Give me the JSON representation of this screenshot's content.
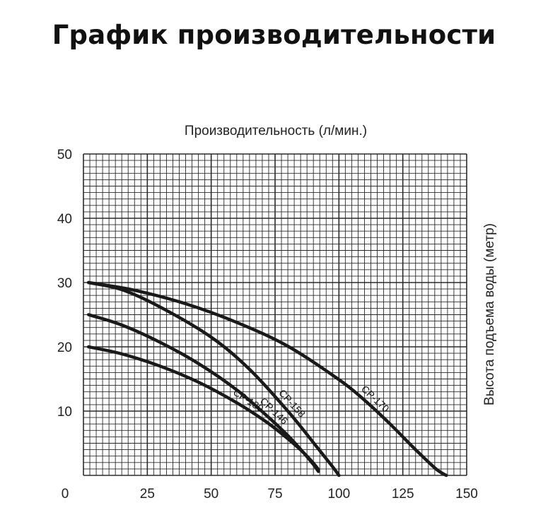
{
  "title": "График производительности",
  "chart_data": {
    "type": "line",
    "xlabel": "Производительность (л/мин.)",
    "ylabel": "Высота подъема воды (метр)",
    "xlim": [
      0,
      150
    ],
    "ylim": [
      0,
      50
    ],
    "x_ticks": [
      "0",
      "25",
      "50",
      "75",
      "100",
      "125",
      "150"
    ],
    "y_ticks": [
      "10",
      "20",
      "30",
      "40",
      "50"
    ],
    "grid": true,
    "series": [
      {
        "name": "CP-170",
        "x": [
          2,
          20,
          40,
          60,
          80,
          100,
          110,
          120,
          130,
          138,
          142
        ],
        "y": [
          30,
          28.8,
          26.7,
          23.8,
          20.1,
          14.9,
          11.7,
          8.0,
          4.0,
          1.0,
          0
        ]
      },
      {
        "name": "CP-158",
        "x": [
          2,
          15,
          30,
          50,
          65,
          80,
          90,
          95,
          98,
          100
        ],
        "y": [
          30,
          28.9,
          26.2,
          21.5,
          16.5,
          10.0,
          5.1,
          2.6,
          1.1,
          0
        ]
      },
      {
        "name": "CP-146",
        "x": [
          2,
          15,
          30,
          45,
          60,
          72,
          80,
          86,
          90,
          92
        ],
        "y": [
          25,
          23.4,
          20.7,
          17.4,
          13.3,
          9.2,
          6.2,
          3.6,
          1.7,
          0.6
        ]
      },
      {
        "name": "CP-130",
        "x": [
          2,
          15,
          30,
          45,
          60,
          72,
          80,
          86,
          90,
          92
        ],
        "y": [
          20,
          18.9,
          17.0,
          14.5,
          11.3,
          8.2,
          5.7,
          3.6,
          1.9,
          0.9
        ]
      }
    ]
  }
}
